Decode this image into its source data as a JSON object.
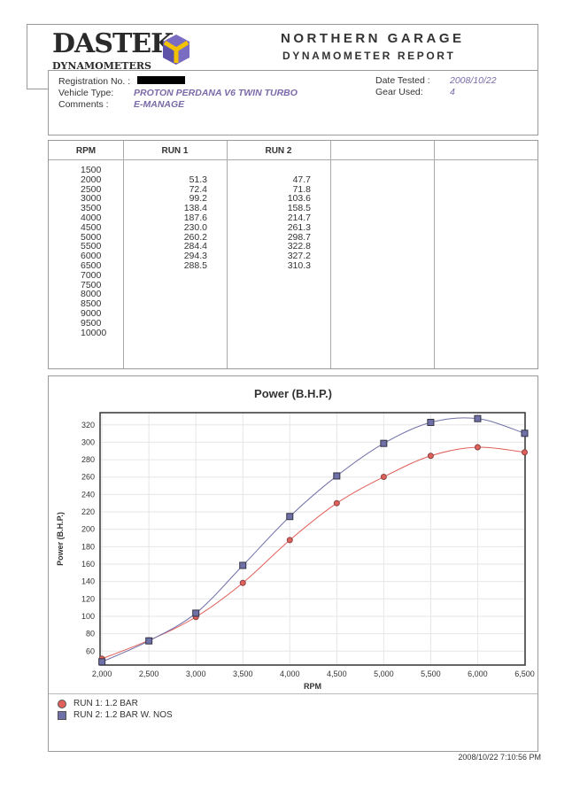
{
  "header": {
    "logo_text": "DASTEK",
    "logo_subtext": "DYNAMOMETERS",
    "title": "NORTHERN GARAGE",
    "subtitle": "DYNAMOMETER REPORT"
  },
  "info": {
    "registration_label": "Registration No. :",
    "vehicle_label": "Vehicle Type:",
    "vehicle_value": "PROTON PERDANA V6 TWIN TURBO",
    "comments_label": "Comments :",
    "comments_value": "E-MANAGE",
    "date_label": "Date Tested :",
    "date_value": "2008/10/22",
    "gear_label": "Gear Used:",
    "gear_value": "4"
  },
  "table": {
    "headers": [
      "RPM",
      "RUN 1",
      "RUN 2"
    ],
    "rpm": [
      "1500",
      "2000",
      "2500",
      "3000",
      "3500",
      "4000",
      "4500",
      "5000",
      "5500",
      "6000",
      "6500",
      "7000",
      "7500",
      "8000",
      "8500",
      "9000",
      "9500",
      "10000"
    ],
    "run1": [
      "",
      "51.3",
      "72.4",
      "99.2",
      "138.4",
      "187.6",
      "230.0",
      "260.2",
      "284.4",
      "294.3",
      "288.5"
    ],
    "run2": [
      "",
      "47.7",
      "71.8",
      "103.6",
      "158.5",
      "214.7",
      "261.3",
      "298.7",
      "322.8",
      "327.2",
      "310.3"
    ]
  },
  "chart_data": {
    "type": "line",
    "title": "Power (B.H.P.)",
    "xlabel": "RPM",
    "ylabel": "Power (B.H.P.)",
    "x": [
      2000,
      2500,
      3000,
      3500,
      4000,
      4500,
      5000,
      5500,
      6000,
      6500
    ],
    "x_tick_labels": [
      "2,000",
      "2,500",
      "3,000",
      "3,500",
      "4,000",
      "4,500",
      "5,000",
      "5,500",
      "6,000",
      "6,500"
    ],
    "y_ticks": [
      60,
      80,
      100,
      120,
      140,
      160,
      180,
      200,
      220,
      240,
      260,
      280,
      300,
      320
    ],
    "xlim": [
      1980,
      6505
    ],
    "ylim": [
      44,
      334
    ],
    "grid": true,
    "legend_position": "bottom-left",
    "series": [
      {
        "name": "RUN 1: 1.2 BAR",
        "color": "#e0605a",
        "marker": "circle",
        "values": [
          51.3,
          72.4,
          99.2,
          138.4,
          187.6,
          230.0,
          260.2,
          284.4,
          294.3,
          288.5
        ]
      },
      {
        "name": "RUN 2: 1.2 BAR W. NOS",
        "color": "#7070a8",
        "marker": "square",
        "values": [
          47.7,
          71.8,
          103.6,
          158.5,
          214.7,
          261.3,
          298.7,
          322.8,
          327.2,
          310.3
        ]
      }
    ]
  },
  "footer": {
    "timestamp": "2008/10/22 7:10:56 PM"
  }
}
